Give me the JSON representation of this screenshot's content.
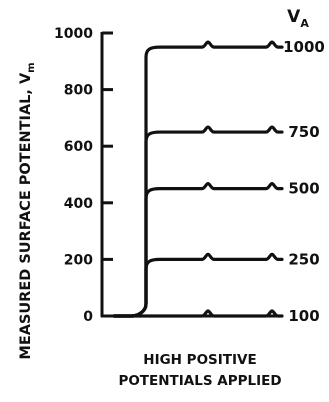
{
  "chart_data": {
    "type": "line",
    "title": "",
    "xlabel": "HIGH POSITIVE POTENTIALS APPLIED",
    "ylabel": "MEASURED SURFACE POTENTIAL, V",
    "ylabel_subscript": "m",
    "ylim": [
      0,
      1000
    ],
    "yticks": [
      "0",
      "200",
      "400",
      "600",
      "800",
      "1000"
    ],
    "ytick_values": [
      0,
      200,
      400,
      600,
      800,
      1000
    ],
    "legend_header": "V",
    "legend_header_subscript": "A",
    "grid": false,
    "series": [
      {
        "name": "1000",
        "values": [
          950,
          950,
          950
        ]
      },
      {
        "name": "750",
        "values": [
          650,
          650,
          650
        ]
      },
      {
        "name": "500",
        "values": [
          450,
          450,
          450
        ]
      },
      {
        "name": "250",
        "values": [
          200,
          200,
          200
        ]
      },
      {
        "name": "100",
        "values": [
          0,
          0,
          0
        ]
      }
    ]
  }
}
